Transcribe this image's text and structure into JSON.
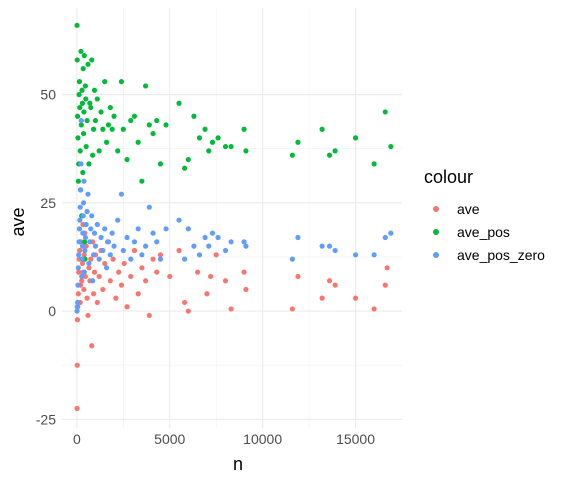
{
  "chart_data": {
    "type": "scatter",
    "title": "",
    "xlabel": "n",
    "ylabel": "ave",
    "xlim": [
      -800,
      17500
    ],
    "ylim": [
      -27,
      70
    ],
    "xticks": [
      0,
      5000,
      10000,
      15000
    ],
    "xtick_labels": [
      "0",
      "5000",
      "10000",
      "15000"
    ],
    "yticks": [
      -25,
      0,
      25,
      50
    ],
    "ytick_labels": [
      "-25",
      "0",
      "25",
      "50"
    ],
    "grid": true,
    "legend_title": "colour",
    "legend_position": "right",
    "series": [
      {
        "name": "ave",
        "color": "#F8766D",
        "points": [
          [
            10,
            -22.5
          ],
          [
            20,
            -12.5
          ],
          [
            30,
            -2
          ],
          [
            50,
            1
          ],
          [
            80,
            4
          ],
          [
            100,
            9
          ],
          [
            120,
            12
          ],
          [
            150,
            14
          ],
          [
            180,
            2
          ],
          [
            200,
            6
          ],
          [
            230,
            16
          ],
          [
            260,
            7
          ],
          [
            300,
            11
          ],
          [
            330,
            20
          ],
          [
            350,
            9
          ],
          [
            380,
            5
          ],
          [
            400,
            13
          ],
          [
            430,
            18
          ],
          [
            460,
            8
          ],
          [
            500,
            15
          ],
          [
            550,
            3
          ],
          [
            600,
            -1
          ],
          [
            650,
            10
          ],
          [
            700,
            7
          ],
          [
            750,
            12
          ],
          [
            800,
            -8
          ],
          [
            850,
            16
          ],
          [
            900,
            4
          ],
          [
            950,
            9
          ],
          [
            1000,
            13
          ],
          [
            1100,
            2
          ],
          [
            1200,
            8
          ],
          [
            1300,
            14
          ],
          [
            1400,
            5
          ],
          [
            1500,
            11
          ],
          [
            1650,
            16
          ],
          [
            1800,
            7
          ],
          [
            1950,
            12
          ],
          [
            2100,
            3
          ],
          [
            2250,
            9
          ],
          [
            2400,
            6
          ],
          [
            2550,
            11
          ],
          [
            2700,
            1
          ],
          [
            2900,
            8
          ],
          [
            3100,
            14
          ],
          [
            3300,
            4
          ],
          [
            3500,
            10
          ],
          [
            3700,
            7
          ],
          [
            3900,
            -1
          ],
          [
            4100,
            12
          ],
          [
            4300,
            9
          ],
          [
            4500,
            13
          ],
          [
            5000,
            8
          ],
          [
            5500,
            14
          ],
          [
            5800,
            2
          ],
          [
            6000,
            0
          ],
          [
            6500,
            9
          ],
          [
            7000,
            4
          ],
          [
            7200,
            8
          ],
          [
            7500,
            13
          ],
          [
            8000,
            7
          ],
          [
            8300,
            0.5
          ],
          [
            9000,
            9
          ],
          [
            9100,
            5
          ],
          [
            11600,
            0.5
          ],
          [
            11900,
            8
          ],
          [
            13200,
            3
          ],
          [
            13600,
            7
          ],
          [
            13900,
            6
          ],
          [
            15000,
            3
          ],
          [
            16000,
            0.5
          ],
          [
            16600,
            6
          ],
          [
            16700,
            10
          ]
        ]
      },
      {
        "name": "ave_pos",
        "color": "#00BA38",
        "points": [
          [
            10,
            66
          ],
          [
            20,
            58
          ],
          [
            40,
            45
          ],
          [
            60,
            40
          ],
          [
            80,
            30
          ],
          [
            100,
            34
          ],
          [
            120,
            50
          ],
          [
            140,
            53
          ],
          [
            160,
            47
          ],
          [
            180,
            37
          ],
          [
            200,
            28
          ],
          [
            220,
            60
          ],
          [
            240,
            43
          ],
          [
            260,
            22
          ],
          [
            280,
            51
          ],
          [
            300,
            48
          ],
          [
            320,
            32
          ],
          [
            340,
            56
          ],
          [
            360,
            41
          ],
          [
            380,
            46
          ],
          [
            400,
            59
          ],
          [
            420,
            16
          ],
          [
            440,
            12
          ],
          [
            460,
            52
          ],
          [
            480,
            49
          ],
          [
            500,
            38
          ],
          [
            550,
            44
          ],
          [
            600,
            57
          ],
          [
            650,
            34
          ],
          [
            700,
            48
          ],
          [
            750,
            47
          ],
          [
            800,
            58
          ],
          [
            850,
            36
          ],
          [
            900,
            42
          ],
          [
            950,
            51
          ],
          [
            1000,
            44
          ],
          [
            1100,
            49
          ],
          [
            1200,
            37
          ],
          [
            1300,
            46
          ],
          [
            1400,
            42
          ],
          [
            1500,
            53
          ],
          [
            1600,
            39
          ],
          [
            1700,
            43
          ],
          [
            1800,
            47
          ],
          [
            1900,
            42
          ],
          [
            2000,
            45
          ],
          [
            2200,
            37
          ],
          [
            2400,
            53
          ],
          [
            2500,
            42
          ],
          [
            2700,
            35
          ],
          [
            2900,
            44
          ],
          [
            3100,
            45
          ],
          [
            3300,
            39
          ],
          [
            3500,
            30
          ],
          [
            3700,
            52
          ],
          [
            3900,
            43
          ],
          [
            4100,
            41
          ],
          [
            4300,
            44
          ],
          [
            4500,
            34
          ],
          [
            4800,
            43
          ],
          [
            5500,
            48
          ],
          [
            5800,
            33
          ],
          [
            6000,
            35
          ],
          [
            6300,
            45
          ],
          [
            6600,
            40
          ],
          [
            6900,
            42
          ],
          [
            7100,
            37
          ],
          [
            7300,
            39
          ],
          [
            7600,
            40
          ],
          [
            8000,
            38
          ],
          [
            8300,
            38
          ],
          [
            9000,
            42
          ],
          [
            9100,
            37
          ],
          [
            11600,
            36
          ],
          [
            11900,
            39
          ],
          [
            13200,
            42
          ],
          [
            13600,
            36
          ],
          [
            13900,
            37
          ],
          [
            15000,
            40
          ],
          [
            16000,
            34
          ],
          [
            16600,
            46
          ],
          [
            16900,
            38
          ]
        ]
      },
      {
        "name": "ave_pos_zero",
        "color": "#619CFF",
        "points": [
          [
            10,
            0
          ],
          [
            20,
            1
          ],
          [
            40,
            2
          ],
          [
            60,
            6
          ],
          [
            80,
            10
          ],
          [
            100,
            13
          ],
          [
            120,
            16
          ],
          [
            140,
            19
          ],
          [
            160,
            21
          ],
          [
            180,
            24
          ],
          [
            200,
            28
          ],
          [
            220,
            34
          ],
          [
            240,
            44
          ],
          [
            260,
            8
          ],
          [
            280,
            12
          ],
          [
            300,
            15
          ],
          [
            320,
            18
          ],
          [
            340,
            22
          ],
          [
            360,
            25
          ],
          [
            380,
            30
          ],
          [
            400,
            9
          ],
          [
            430,
            14
          ],
          [
            460,
            17
          ],
          [
            500,
            20
          ],
          [
            550,
            23
          ],
          [
            600,
            27
          ],
          [
            650,
            11
          ],
          [
            700,
            16
          ],
          [
            750,
            19
          ],
          [
            800,
            22
          ],
          [
            850,
            7
          ],
          [
            900,
            13
          ],
          [
            950,
            18
          ],
          [
            1000,
            15
          ],
          [
            1100,
            20
          ],
          [
            1200,
            12
          ],
          [
            1300,
            17
          ],
          [
            1400,
            14
          ],
          [
            1500,
            19
          ],
          [
            1600,
            10
          ],
          [
            1700,
            16
          ],
          [
            1800,
            13
          ],
          [
            1900,
            18
          ],
          [
            2000,
            15
          ],
          [
            2200,
            21
          ],
          [
            2400,
            27
          ],
          [
            2500,
            14
          ],
          [
            2700,
            17
          ],
          [
            2900,
            12
          ],
          [
            3100,
            16
          ],
          [
            3300,
            19
          ],
          [
            3500,
            13
          ],
          [
            3700,
            15
          ],
          [
            3900,
            24
          ],
          [
            4100,
            18
          ],
          [
            4300,
            16
          ],
          [
            4500,
            12
          ],
          [
            4800,
            19
          ],
          [
            5500,
            21
          ],
          [
            5800,
            12
          ],
          [
            6000,
            19
          ],
          [
            6300,
            15
          ],
          [
            6600,
            13
          ],
          [
            6900,
            17
          ],
          [
            7100,
            15
          ],
          [
            7300,
            18
          ],
          [
            7600,
            17
          ],
          [
            8000,
            14
          ],
          [
            8300,
            16
          ],
          [
            9000,
            16
          ],
          [
            9100,
            15
          ],
          [
            11600,
            12
          ],
          [
            11900,
            17
          ],
          [
            13200,
            15
          ],
          [
            13600,
            15
          ],
          [
            13900,
            14
          ],
          [
            15000,
            13
          ],
          [
            16000,
            13
          ],
          [
            16600,
            17
          ],
          [
            16900,
            18
          ]
        ]
      }
    ]
  }
}
